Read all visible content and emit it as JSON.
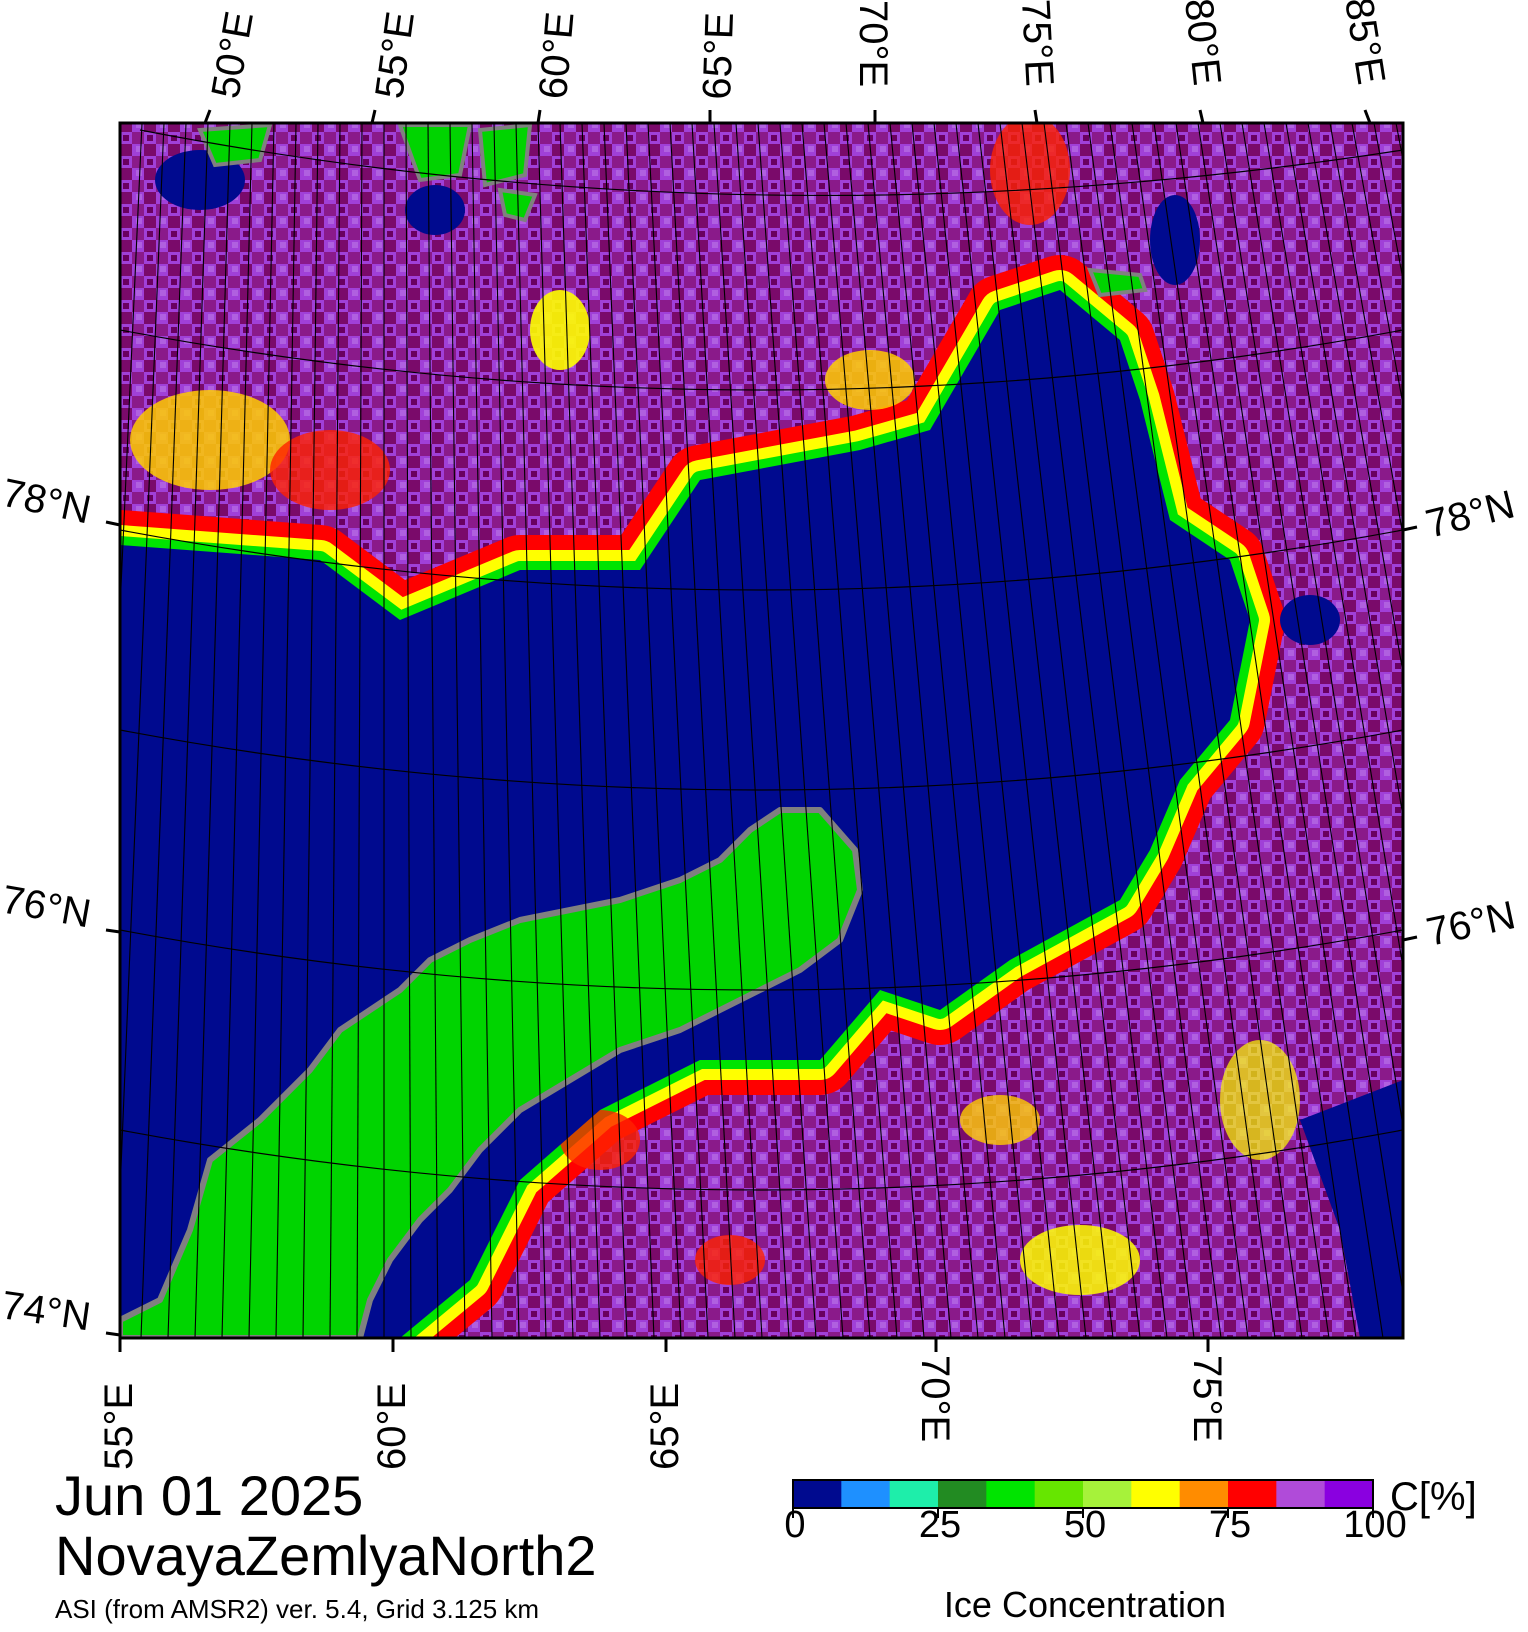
{
  "caption": {
    "date": "Jun 01 2025",
    "region": "NovayaZemlyaNorth2",
    "source": "ASI (from AMSR2) ver. 5.4,  Grid 3.125 km"
  },
  "map": {
    "top_lon_labels": [
      "50°E",
      "55°E",
      "60°E",
      "65°E",
      "70°E",
      "75°E",
      "80°E",
      "85°E"
    ],
    "bottom_lon_labels": [
      "55°E",
      "60°E",
      "65°E",
      "70°E",
      "75°E"
    ],
    "left_lat_labels": [
      "78°N",
      "76°N",
      "74°N"
    ],
    "right_lat_labels": [
      "78°N",
      "76°N"
    ],
    "land_color": "#00d400",
    "coast_color": "#808080",
    "open_water_color": "#000a8f"
  },
  "colorbar": {
    "title": "Ice Concentration",
    "unit": "C[%]",
    "ticks": [
      "0",
      "25",
      "50",
      "75",
      "100"
    ],
    "range": [
      0,
      100
    ],
    "colors": [
      "#000a8f",
      "#1e90ff",
      "#1eeeaa",
      "#228b22",
      "#00e400",
      "#66e600",
      "#a6f23a",
      "#ffff00",
      "#ff8c00",
      "#ff0000",
      "#b04bd9",
      "#8a00e0"
    ]
  }
}
